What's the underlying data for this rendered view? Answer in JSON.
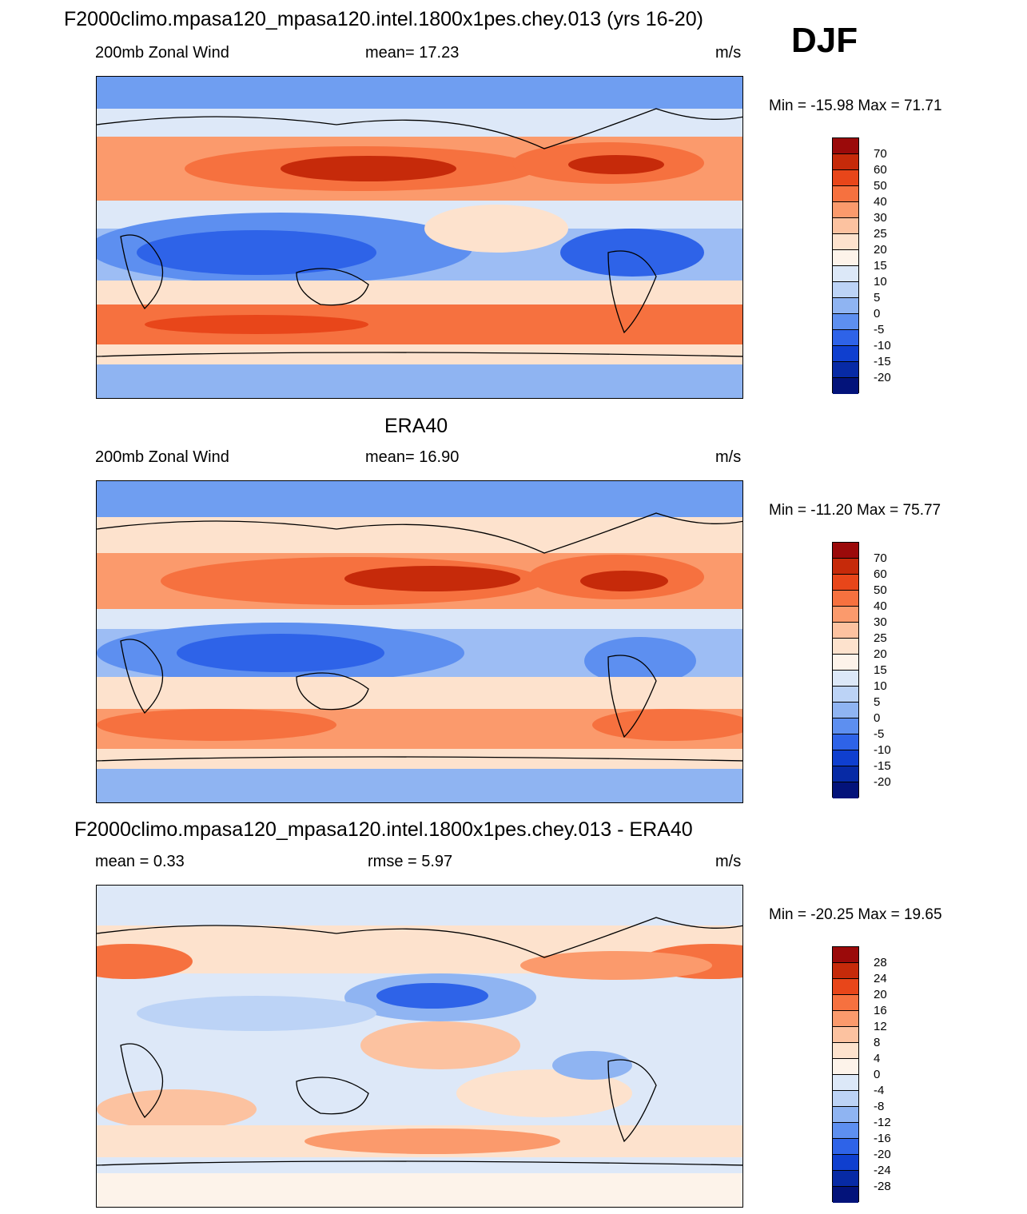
{
  "figure": {
    "season": "DJF",
    "panels": [
      {
        "title": "F2000climo.mpasa120_mpasa120.intel.1800x1pes.chey.013 (yrs 16-20)",
        "left_label": "200mb Zonal Wind",
        "center_label": "mean=  17.23",
        "right_label": "m/s",
        "minmax": "Min = -15.98 Max =  71.71",
        "colorbar_labels": [
          "70",
          "60",
          "50",
          "40",
          "30",
          "25",
          "20",
          "15",
          "10",
          "5",
          "0",
          "-5",
          "-10",
          "-15",
          "-20"
        ],
        "colorbar_colors": [
          "#9b0a0a",
          "#c62a0a",
          "#e8461a",
          "#f6713f",
          "#fb9a6c",
          "#fcc2a0",
          "#fde2cd",
          "#fdf3ea",
          "#dce8f8",
          "#bcd3f6",
          "#8fb4f2",
          "#5d8ff0",
          "#2e63e8",
          "#0f3fcf",
          "#072aa5",
          "#03137a"
        ]
      },
      {
        "title": "ERA40",
        "left_label": "200mb Zonal Wind",
        "center_label": "mean=  16.90",
        "right_label": "m/s",
        "minmax": "Min = -11.20 Max =  75.77",
        "colorbar_labels": [
          "70",
          "60",
          "50",
          "40",
          "30",
          "25",
          "20",
          "15",
          "10",
          "5",
          "0",
          "-5",
          "-10",
          "-15",
          "-20"
        ],
        "colorbar_colors": [
          "#9b0a0a",
          "#c62a0a",
          "#e8461a",
          "#f6713f",
          "#fb9a6c",
          "#fcc2a0",
          "#fde2cd",
          "#fdf3ea",
          "#dce8f8",
          "#bcd3f6",
          "#8fb4f2",
          "#5d8ff0",
          "#2e63e8",
          "#0f3fcf",
          "#072aa5",
          "#03137a"
        ]
      },
      {
        "title": "F2000climo.mpasa120_mpasa120.intel.1800x1pes.chey.013 - ERA40",
        "left_label": "mean =    0.33",
        "center_label": "rmse =    5.97",
        "right_label": "m/s",
        "minmax": "Min = -20.25 Max =  19.65",
        "colorbar_labels": [
          "28",
          "24",
          "20",
          "16",
          "12",
          "8",
          "4",
          "0",
          "-4",
          "-8",
          "-12",
          "-16",
          "-20",
          "-24",
          "-28"
        ],
        "colorbar_colors": [
          "#9b0a0a",
          "#c62a0a",
          "#e8461a",
          "#f6713f",
          "#fb9a6c",
          "#fcc2a0",
          "#fde2cd",
          "#fdf3ea",
          "#dce8f8",
          "#bcd3f6",
          "#8fb4f2",
          "#5d8ff0",
          "#2e63e8",
          "#0f3fcf",
          "#072aa5",
          "#03137a"
        ]
      }
    ]
  }
}
